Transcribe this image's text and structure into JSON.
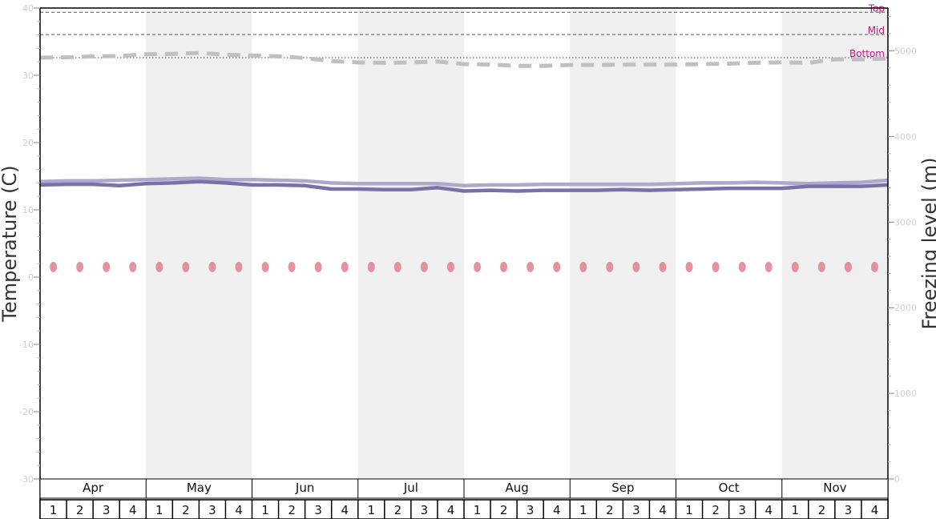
{
  "chart_data": {
    "type": "line",
    "ylabel_left": "Temperature (C)",
    "ylabel_right": "Freezing level (m)",
    "ylim_left": [
      -30,
      40
    ],
    "ylim_right": [
      0,
      5500
    ],
    "left_ticks": [
      "-30",
      "-20",
      "-10",
      "0",
      "10",
      "20",
      "30",
      "40"
    ],
    "right_ticks": [
      "0",
      "1000",
      "2000",
      "3000",
      "4000",
      "5000"
    ],
    "months": [
      "Apr",
      "May",
      "Jun",
      "Jul",
      "Aug",
      "Sep",
      "Oct",
      "Nov"
    ],
    "weeks": [
      "1",
      "2",
      "3",
      "4"
    ],
    "shaded_months": [
      "May",
      "Jul",
      "Sep",
      "Nov"
    ],
    "reference_lines": [
      {
        "label": "Top",
        "value_m": 5450,
        "style": "dashed"
      },
      {
        "label": "Mid",
        "value_m": 5190,
        "style": "dashed"
      },
      {
        "label": "Bottom",
        "value_m": 4920,
        "style": "dotted"
      }
    ],
    "series": [
      {
        "axis": "right",
        "color": "#c0c0c0",
        "style": "dashed",
        "values": [
          4920,
          4925,
          4935,
          4940,
          4960,
          4965,
          4975,
          4955,
          4945,
          4935,
          4915,
          4880,
          4865,
          4860,
          4865,
          4875,
          4845,
          4840,
          4825,
          4825,
          4835,
          4835,
          4840,
          4840,
          4840,
          4845,
          4850,
          4860,
          4865,
          4860,
          4900,
          4900,
          4910
        ]
      },
      {
        "axis": "left",
        "color": "#b0a8cc",
        "style": "solid",
        "values": [
          14.2,
          14.3,
          14.3,
          14.4,
          14.5,
          14.6,
          14.7,
          14.5,
          14.5,
          14.4,
          14.3,
          14.0,
          13.9,
          13.9,
          13.9,
          13.9,
          13.6,
          13.7,
          13.7,
          13.8,
          13.8,
          13.8,
          13.8,
          13.8,
          13.9,
          14.0,
          14.0,
          14.1,
          14.0,
          13.9,
          14.0,
          14.1,
          14.4
        ]
      },
      {
        "axis": "left",
        "color": "#7a70aa",
        "style": "solid",
        "values": [
          13.7,
          13.8,
          13.8,
          13.6,
          13.9,
          14.0,
          14.2,
          14.0,
          13.7,
          13.7,
          13.6,
          13.1,
          13.1,
          13.0,
          13.0,
          13.3,
          12.8,
          12.9,
          12.8,
          12.9,
          12.9,
          12.9,
          13.0,
          12.9,
          13.0,
          13.1,
          13.2,
          13.2,
          13.2,
          13.5,
          13.5,
          13.5,
          13.7
        ]
      },
      {
        "axis": "left",
        "color": "#e0808c",
        "style": "markers",
        "values": [
          1.5,
          1.5,
          1.5,
          1.5,
          1.5,
          1.5,
          1.5,
          1.5,
          1.5,
          1.5,
          1.5,
          1.5,
          1.5,
          1.5,
          1.5,
          1.5,
          1.5,
          1.5,
          1.5,
          1.5,
          1.5,
          1.5,
          1.5,
          1.5,
          1.5,
          1.5,
          1.5,
          1.5,
          1.5,
          1.5,
          1.5,
          1.5
        ]
      }
    ]
  }
}
